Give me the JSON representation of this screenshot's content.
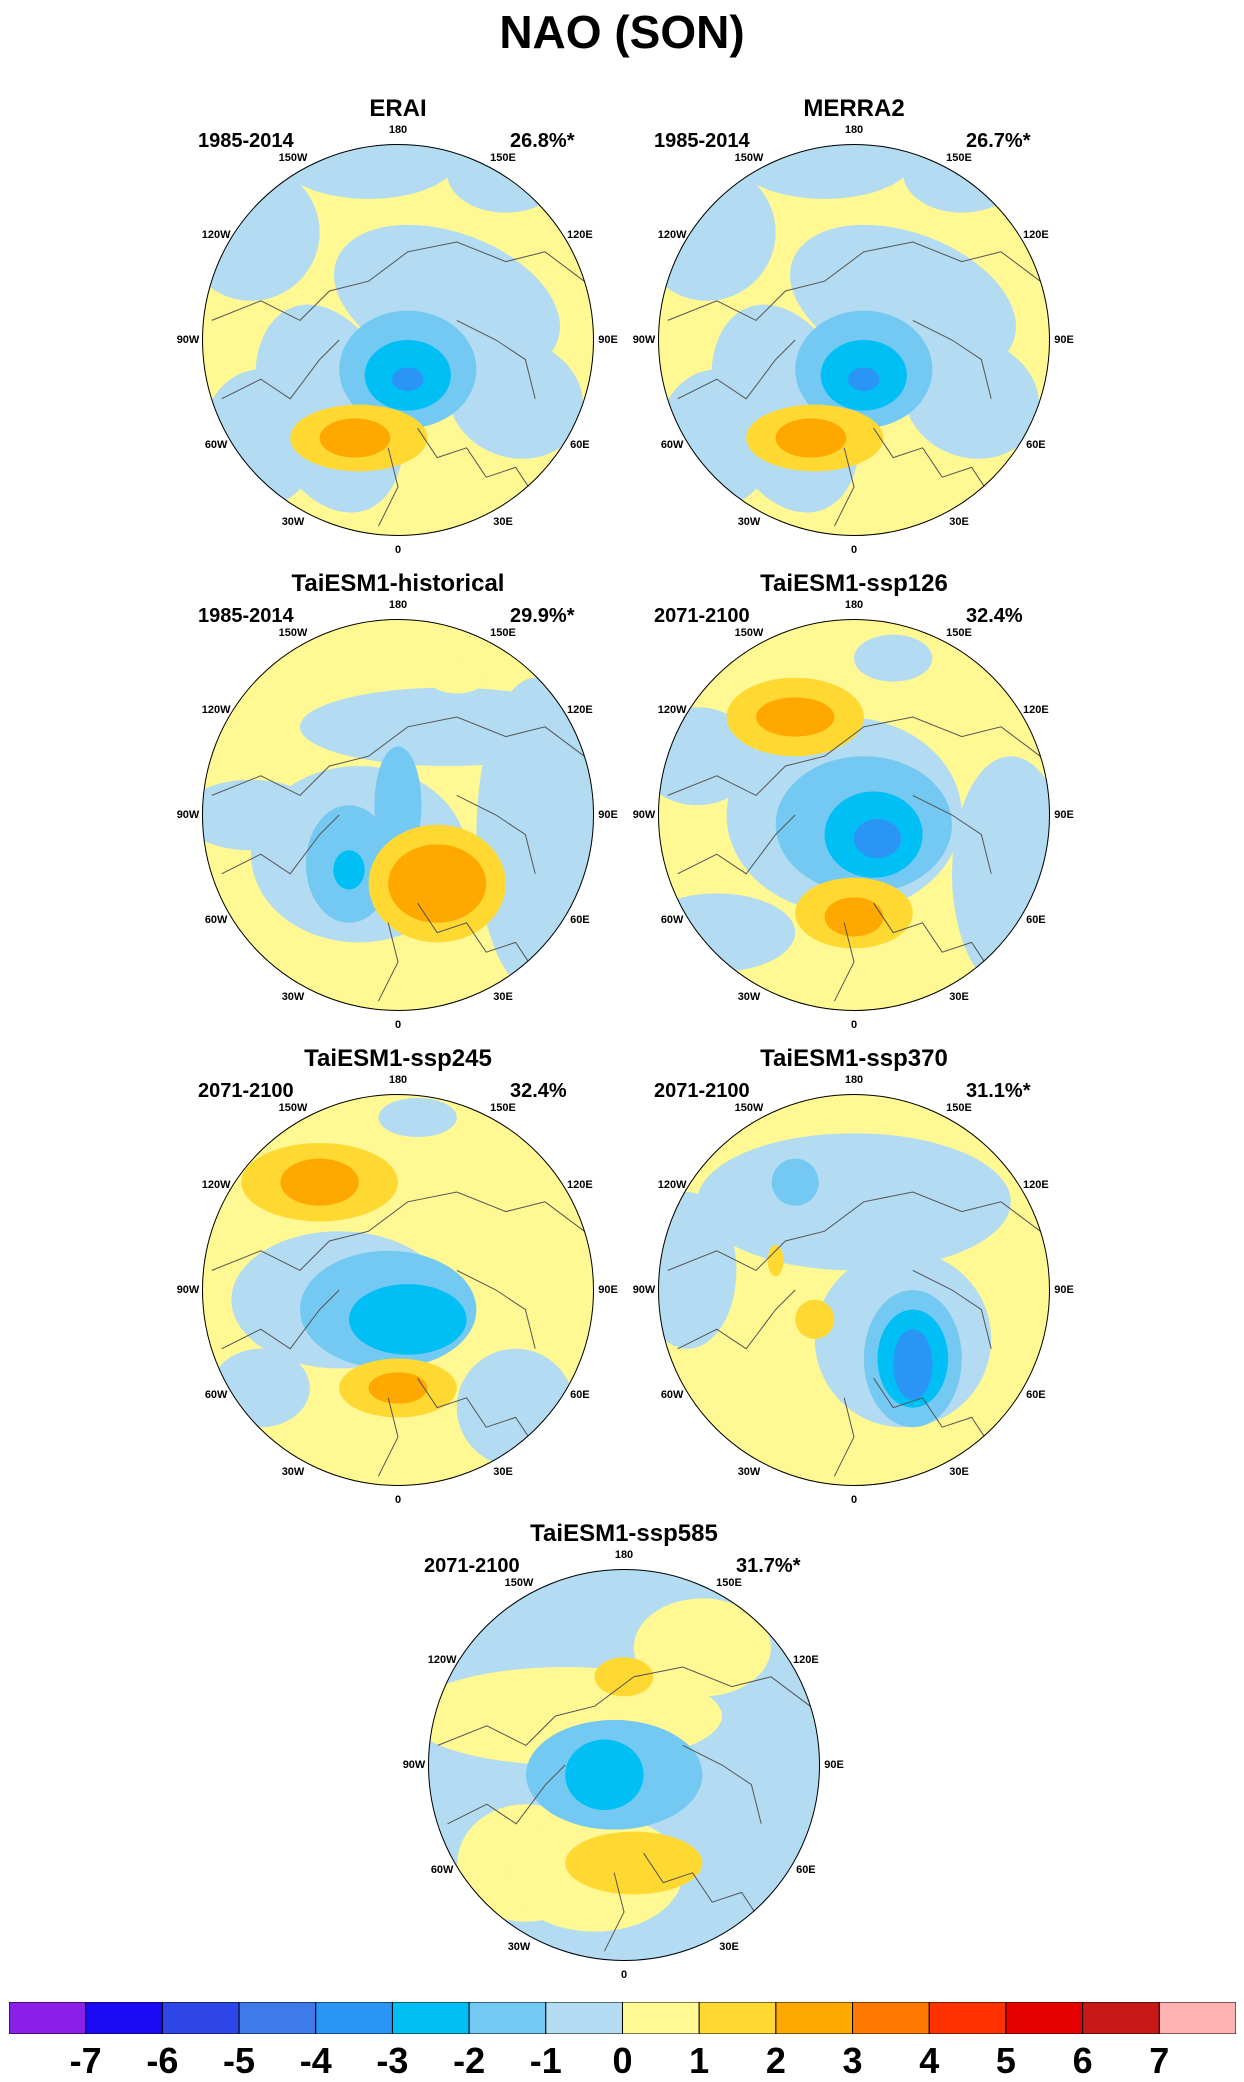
{
  "title": "NAO (SON)",
  "lon_labels": [
    "180",
    "150E",
    "120E",
    "90E",
    "60E",
    "30E",
    "0",
    "30W",
    "60W",
    "90W",
    "120W",
    "150W"
  ],
  "panels": [
    {
      "title": "ERAI",
      "period": "1985-2014",
      "percent": "26.8%*",
      "pattern": "obs"
    },
    {
      "title": "MERRA2",
      "period": "1985-2014",
      "percent": "26.7%*",
      "pattern": "obs"
    },
    {
      "title": "TaiESM1-historical",
      "period": "1985-2014",
      "percent": "29.9%*",
      "pattern": "hist"
    },
    {
      "title": "TaiESM1-ssp126",
      "period": "2071-2100",
      "percent": "32.4%",
      "pattern": "ssp126"
    },
    {
      "title": "TaiESM1-ssp245",
      "period": "2071-2100",
      "percent": "32.4%",
      "pattern": "ssp245"
    },
    {
      "title": "TaiESM1-ssp370",
      "period": "2071-2100",
      "percent": "31.1%*",
      "pattern": "ssp370"
    },
    {
      "title": "TaiESM1-ssp585",
      "period": "2071-2100",
      "percent": "31.7%*",
      "pattern": "ssp585"
    }
  ],
  "colorbar": {
    "colors": [
      "#8a1fe8",
      "#1b0cf5",
      "#2e45e8",
      "#3e7ae8",
      "#2a95f5",
      "#00bff5",
      "#74c9f2",
      "#b3dcf2",
      "#fff893",
      "#ffd832",
      "#ffa800",
      "#ff7a00",
      "#ff3300",
      "#e60000",
      "#c81818",
      "#ffb2b2"
    ],
    "labels": [
      "-7",
      "-6",
      "-5",
      "-4",
      "-3",
      "-2",
      "-1",
      "0",
      "1",
      "2",
      "3",
      "4",
      "5",
      "6",
      "7"
    ]
  }
}
